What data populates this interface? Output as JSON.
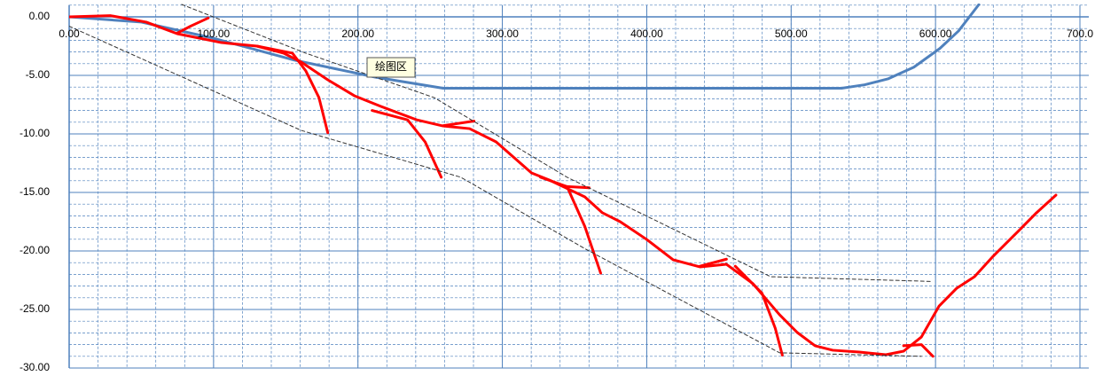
{
  "chart_data": {
    "type": "line",
    "annotation": "绘图区",
    "xlim": [
      0,
      700
    ],
    "ylim": [
      -30,
      1
    ],
    "xticks": [
      {
        "value": 0,
        "label": "0.00"
      },
      {
        "value": 100,
        "label": "100.00"
      },
      {
        "value": 200,
        "label": "200.00"
      },
      {
        "value": 300,
        "label": "300.00"
      },
      {
        "value": 400,
        "label": "400.00"
      },
      {
        "value": 500,
        "label": "500.00"
      },
      {
        "value": 600,
        "label": "600.00"
      },
      {
        "value": 700,
        "label": "700.0"
      }
    ],
    "yticks": [
      {
        "value": 0,
        "label": "0.00"
      },
      {
        "value": -5,
        "label": "-5.00"
      },
      {
        "value": -10,
        "label": "-10.00"
      },
      {
        "value": -15,
        "label": "-15.00"
      },
      {
        "value": -20,
        "label": "-20.00"
      },
      {
        "value": -25,
        "label": "-25.00"
      },
      {
        "value": -30,
        "label": "-30.00"
      }
    ],
    "grid": true,
    "x_minor_step": 20,
    "y_minor_step": 1,
    "series": [
      {
        "color": "#4f81bd",
        "width": 3,
        "dashed": false,
        "x": [
          0,
          50,
          99,
          156,
          212,
          259,
          535,
          551,
          567,
          585,
          603,
          616,
          630
        ],
        "values": [
          0,
          -0.45,
          -1.8,
          -3.7,
          -5.15,
          -6.1,
          -6.1,
          -5.8,
          -5.3,
          -4.3,
          -2.7,
          -1.2,
          1.05
        ]
      },
      {
        "color": "#ff0000",
        "width": 3,
        "dashed": false,
        "x": [
          0,
          28.8,
          53.4,
          74.8,
          105.5,
          130.1,
          148.5,
          160.7,
          179.1,
          197.5,
          215.9,
          240.5,
          258.9,
          277.3,
          295.7,
          320.2,
          332.5,
          357.1,
          369.3,
          381.6,
          400,
          418.4,
          436.8,
          455.2,
          473.6,
          492,
          504.3,
          516.6,
          528.8,
          547.2,
          565.6,
          577.9,
          590.2,
          602.5,
          614.7,
          627,
          639.3,
          657.7,
          669.9,
          683.4
        ],
        "values": [
          0,
          0.1,
          -0.45,
          -1.44,
          -2.2,
          -2.5,
          -3.1,
          -3.86,
          -5.38,
          -6.74,
          -7.65,
          -8.79,
          -9.32,
          -9.55,
          -10.68,
          -13.33,
          -13.94,
          -15.38,
          -16.74,
          -17.5,
          -19.02,
          -20.76,
          -21.36,
          -21.14,
          -22.8,
          -25.45,
          -26.97,
          -28.1,
          -28.48,
          -28.64,
          -28.86,
          -28.56,
          -27.35,
          -24.7,
          -23.18,
          -22.2,
          -20.53,
          -18.26,
          -16.74,
          -15.23
        ]
      },
      {
        "color": "#ff0000",
        "width": 3,
        "dashed": false,
        "x": [
          74.8,
          84,
          96.3
        ],
        "values": [
          -1.4,
          -0.8,
          -0.1
        ]
      },
      {
        "color": "#ff0000",
        "width": 3,
        "dashed": false,
        "x": [
          130.1,
          154.6,
          163.8,
          173,
          179.1
        ],
        "values": [
          -2.5,
          -3.1,
          -4.6,
          -6.9,
          -9.9
        ]
      },
      {
        "color": "#ff0000",
        "width": 3,
        "dashed": false,
        "x": [
          209.8,
          234.4,
          246.6,
          257.7
        ],
        "values": [
          -8.0,
          -8.8,
          -10.7,
          -13.7
        ]
      },
      {
        "color": "#ff0000",
        "width": 3,
        "dashed": false,
        "x": [
          258.9,
          280.4
        ],
        "values": [
          -9.3,
          -8.9
        ]
      },
      {
        "color": "#ff0000",
        "width": 3,
        "dashed": false,
        "x": [
          326.4,
          344.8,
          357.1,
          368.1
        ],
        "values": [
          -13.7,
          -14.5,
          -17.9,
          -21.9
        ]
      },
      {
        "color": "#ff0000",
        "width": 3,
        "dashed": false,
        "x": [
          344.8,
          360.1
        ],
        "values": [
          -14.5,
          -14.6
        ]
      },
      {
        "color": "#ff0000",
        "width": 3,
        "dashed": false,
        "x": [
          436.8,
          455.2
        ],
        "values": [
          -21.3,
          -20.7
        ]
      },
      {
        "color": "#ff0000",
        "width": 3,
        "dashed": false,
        "x": [
          461.3,
          479.8,
          489,
          493.9
        ],
        "values": [
          -21.3,
          -23.6,
          -26.6,
          -28.9
        ]
      },
      {
        "color": "#ff0000",
        "width": 3,
        "dashed": false,
        "x": [
          577.9,
          590.2,
          598.2
        ],
        "values": [
          -28.1,
          -28.0,
          -29.0
        ]
      },
      {
        "color": "#333333",
        "width": 1,
        "dashed": true,
        "x": [
          77.9,
          163.8,
          252.8,
          344.8,
          485.9,
          596.3
        ],
        "values": [
          1.06,
          -3.1,
          -6.9,
          -13.7,
          -22.2,
          -22.6
        ]
      },
      {
        "color": "#333333",
        "width": 1,
        "dashed": true,
        "x": [
          0,
          160.7,
          271.2,
          357.1,
          492,
          590.2
        ],
        "values": [
          -0.8,
          -9.7,
          -13.7,
          -19.8,
          -28.7,
          -29.0
        ]
      }
    ]
  }
}
